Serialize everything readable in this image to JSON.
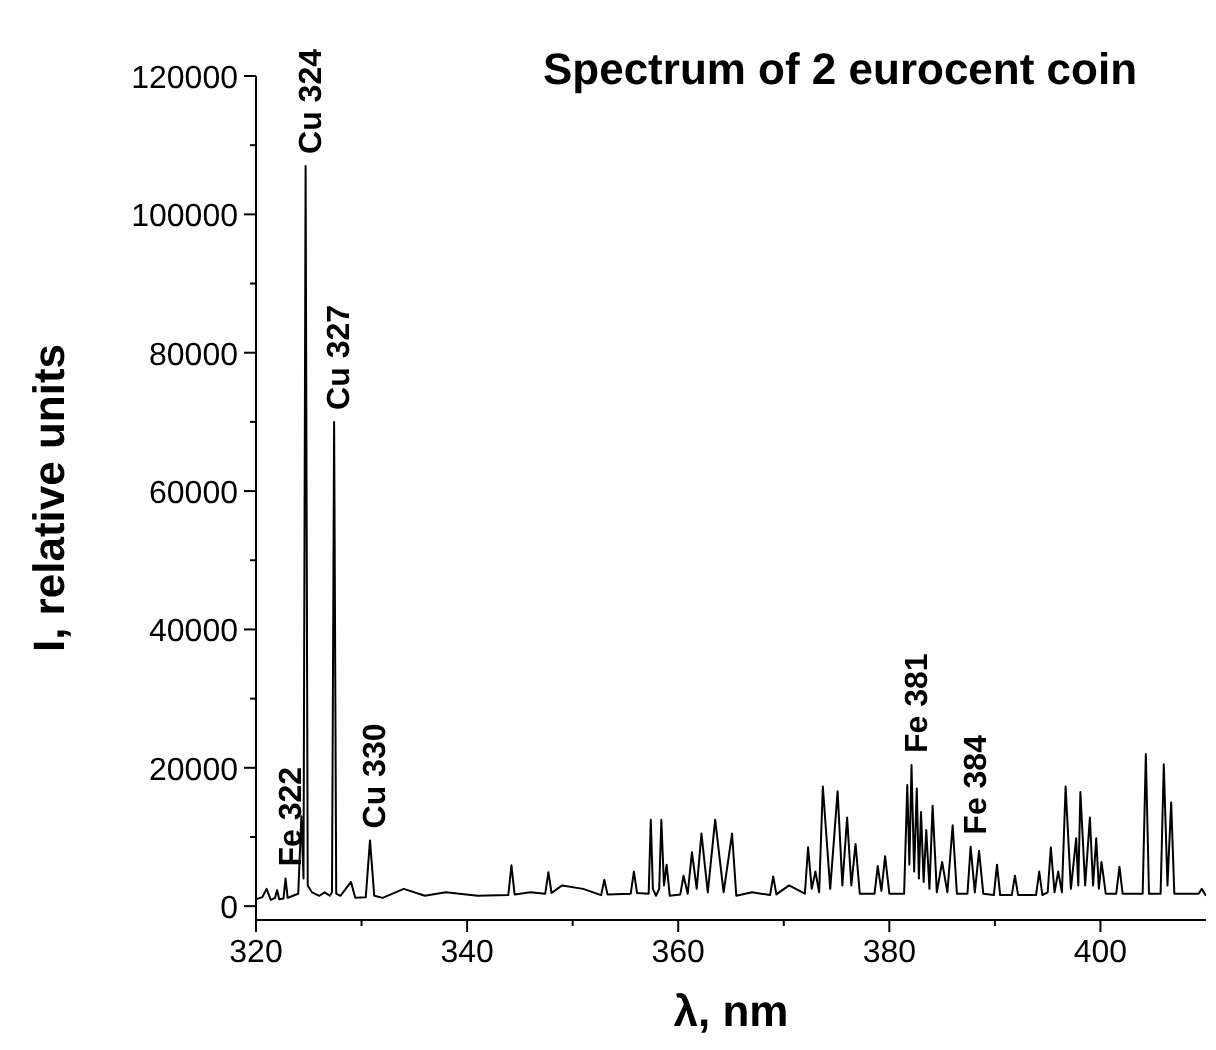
{
  "chart_data": {
    "type": "line",
    "title": "Spectrum of 2 eurocent coin",
    "xlabel": "λ, nm",
    "ylabel": "I, relative units",
    "series": [
      {
        "color": "#000000",
        "x": [
          320,
          320.6,
          321,
          321.4,
          321.8,
          322,
          322.2,
          322.6,
          322.8,
          323,
          323.5,
          324,
          324.3,
          324.5,
          324.7,
          324.9,
          325.3,
          326,
          326.5,
          327,
          327.2,
          327.4,
          327.6,
          328,
          329,
          329.4,
          330.4,
          330.8,
          331.2,
          332,
          334,
          336,
          338,
          341,
          343.9,
          344.2,
          344.5,
          346,
          347.4,
          347.7,
          348,
          349,
          351,
          352.7,
          353,
          353.3,
          355.5,
          355.8,
          356.1,
          357.2,
          357.4,
          357.6,
          357.9,
          358.2,
          358.4,
          358.65,
          358.9,
          359.2,
          360.2,
          360.5,
          360.9,
          361.3,
          361.75,
          362.2,
          362.8,
          363.5,
          364.3,
          365.1,
          365.5,
          367,
          368.7,
          369,
          369.3,
          370.5,
          372,
          372.3,
          372.65,
          373,
          373.35,
          373.7,
          374.4,
          375.1,
          375.55,
          376,
          376.4,
          376.8,
          377.2,
          378.6,
          378.9,
          379.25,
          379.6,
          380,
          381.4,
          381.7,
          381.9,
          382.1,
          382.35,
          382.6,
          382.8,
          383,
          383.25,
          383.5,
          383.8,
          384.1,
          384.5,
          385,
          385.5,
          386,
          386.4,
          387.4,
          387.7,
          388.1,
          388.5,
          388.9,
          389.9,
          390.2,
          390.5,
          391.6,
          391.9,
          392.2,
          393.9,
          394.2,
          394.5,
          395,
          395.3,
          395.65,
          396,
          396.35,
          396.7,
          397.2,
          397.7,
          397.9,
          398.1,
          398.55,
          399,
          399.3,
          399.6,
          399.85,
          400.1,
          400.5,
          401.5,
          401.8,
          402.1,
          404,
          404.3,
          404.6,
          405.7,
          406,
          406.35,
          406.7,
          407,
          409.3,
          409.6,
          410
        ],
        "values": [
          1000,
          1300,
          2500,
          900,
          1200,
          2300,
          1000,
          1100,
          4000,
          1200,
          1500,
          1800,
          13000,
          4000,
          107000,
          3000,
          2000,
          1500,
          2000,
          1500,
          2000,
          70000,
          1800,
          1500,
          3500,
          1200,
          1300,
          9500,
          1500,
          1200,
          2500,
          1500,
          2000,
          1500,
          1600,
          5900,
          1700,
          2000,
          1800,
          4900,
          1900,
          3000,
          2500,
          1600,
          3800,
          1700,
          1800,
          5000,
          1900,
          1800,
          12500,
          2500,
          1500,
          2500,
          12500,
          3000,
          6000,
          1500,
          1700,
          4400,
          1800,
          7800,
          2500,
          10500,
          2000,
          12500,
          2000,
          10500,
          1500,
          2000,
          1600,
          4300,
          1700,
          3000,
          1800,
          8500,
          2500,
          5000,
          2000,
          17300,
          2500,
          16600,
          3000,
          12800,
          3000,
          9000,
          1800,
          1800,
          5800,
          2200,
          7200,
          1800,
          1800,
          17500,
          6000,
          20400,
          5000,
          17000,
          4000,
          13600,
          3500,
          11000,
          2500,
          14500,
          2000,
          6400,
          2000,
          11700,
          1800,
          1800,
          8600,
          2000,
          8000,
          1800,
          1600,
          6000,
          1600,
          1600,
          4400,
          1600,
          1600,
          5000,
          1600,
          2000,
          8500,
          2000,
          5000,
          2000,
          17300,
          2500,
          9800,
          3000,
          16500,
          3000,
          12800,
          3000,
          9800,
          2500,
          6400,
          1800,
          1800,
          5700,
          1800,
          1800,
          22000,
          1800,
          1800,
          20500,
          3000,
          15000,
          1800,
          1800,
          2500,
          1500
        ]
      }
    ],
    "annotations": [
      {
        "text": "Fe 322",
        "x": 322.8,
        "y": 4000
      },
      {
        "text": "Cu 324",
        "x": 324.7,
        "y": 107000
      },
      {
        "text": "Cu 327",
        "x": 327.4,
        "y": 70000
      },
      {
        "text": "Cu 330",
        "x": 330.8,
        "y": 9500
      },
      {
        "text": "Fe 381",
        "x": 382.1,
        "y": 20400
      },
      {
        "text": "Fe 384",
        "x": 387.7,
        "y": 8600
      }
    ],
    "xlim": [
      320,
      410
    ],
    "ylim": [
      -2000,
      120000
    ],
    "xticks": [
      320,
      {
        "value": 330,
        "label": null
      },
      340,
      {
        "value": 350,
        "label": null
      },
      360,
      {
        "value": 370,
        "label": null
      },
      380,
      {
        "value": 390,
        "label": null
      },
      400
    ],
    "yticks": [
      0,
      {
        "value": 10000,
        "label": null
      },
      20000,
      {
        "value": 30000,
        "label": null
      },
      40000,
      {
        "value": 50000,
        "label": null
      },
      60000,
      {
        "value": 70000,
        "label": null
      },
      80000,
      {
        "value": 90000,
        "label": null
      },
      100000,
      {
        "value": 110000,
        "label": null
      },
      120000
    ],
    "grid": false,
    "marker": "none",
    "line_style": "solid"
  }
}
